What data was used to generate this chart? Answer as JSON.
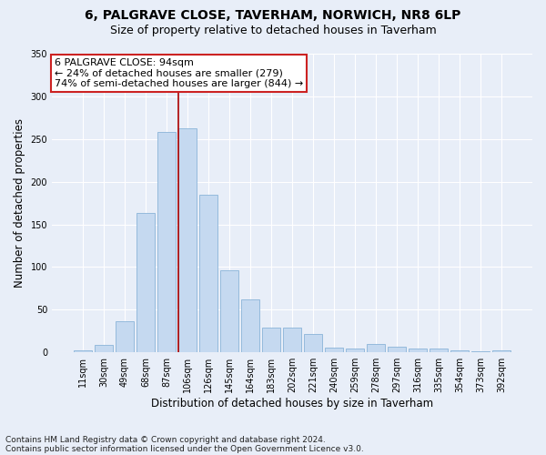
{
  "title1": "6, PALGRAVE CLOSE, TAVERHAM, NORWICH, NR8 6LP",
  "title2": "Size of property relative to detached houses in Taverham",
  "xlabel": "Distribution of detached houses by size in Taverham",
  "ylabel": "Number of detached properties",
  "categories": [
    "11sqm",
    "30sqm",
    "49sqm",
    "68sqm",
    "87sqm",
    "106sqm",
    "126sqm",
    "145sqm",
    "164sqm",
    "183sqm",
    "202sqm",
    "221sqm",
    "240sqm",
    "259sqm",
    "278sqm",
    "297sqm",
    "316sqm",
    "335sqm",
    "354sqm",
    "373sqm",
    "392sqm"
  ],
  "values": [
    2,
    9,
    36,
    163,
    258,
    263,
    185,
    96,
    62,
    29,
    29,
    22,
    6,
    5,
    10,
    7,
    5,
    4,
    2,
    1,
    2
  ],
  "bar_color": "#c5d9f0",
  "bar_edge_color": "#8ab4d8",
  "vline_color": "#aa0000",
  "annotation_box_color": "#ffffff",
  "annotation_box_edge": "#cc2222",
  "footnote1": "Contains HM Land Registry data © Crown copyright and database right 2024.",
  "footnote2": "Contains public sector information licensed under the Open Government Licence v3.0.",
  "bg_color": "#e8eef8",
  "plot_bg_color": "#e8eef8",
  "ylim": [
    0,
    350
  ],
  "title1_fontsize": 10,
  "title2_fontsize": 9,
  "xlabel_fontsize": 8.5,
  "ylabel_fontsize": 8.5,
  "tick_fontsize": 7,
  "footnote_fontsize": 6.5,
  "annotation_fontsize": 8,
  "pct_smaller": 24,
  "n_smaller": 279,
  "pct_larger_semi": 74,
  "n_larger_semi": 844,
  "property_label": "6 PALGRAVE CLOSE: 94sqm",
  "vline_position": 4.575
}
